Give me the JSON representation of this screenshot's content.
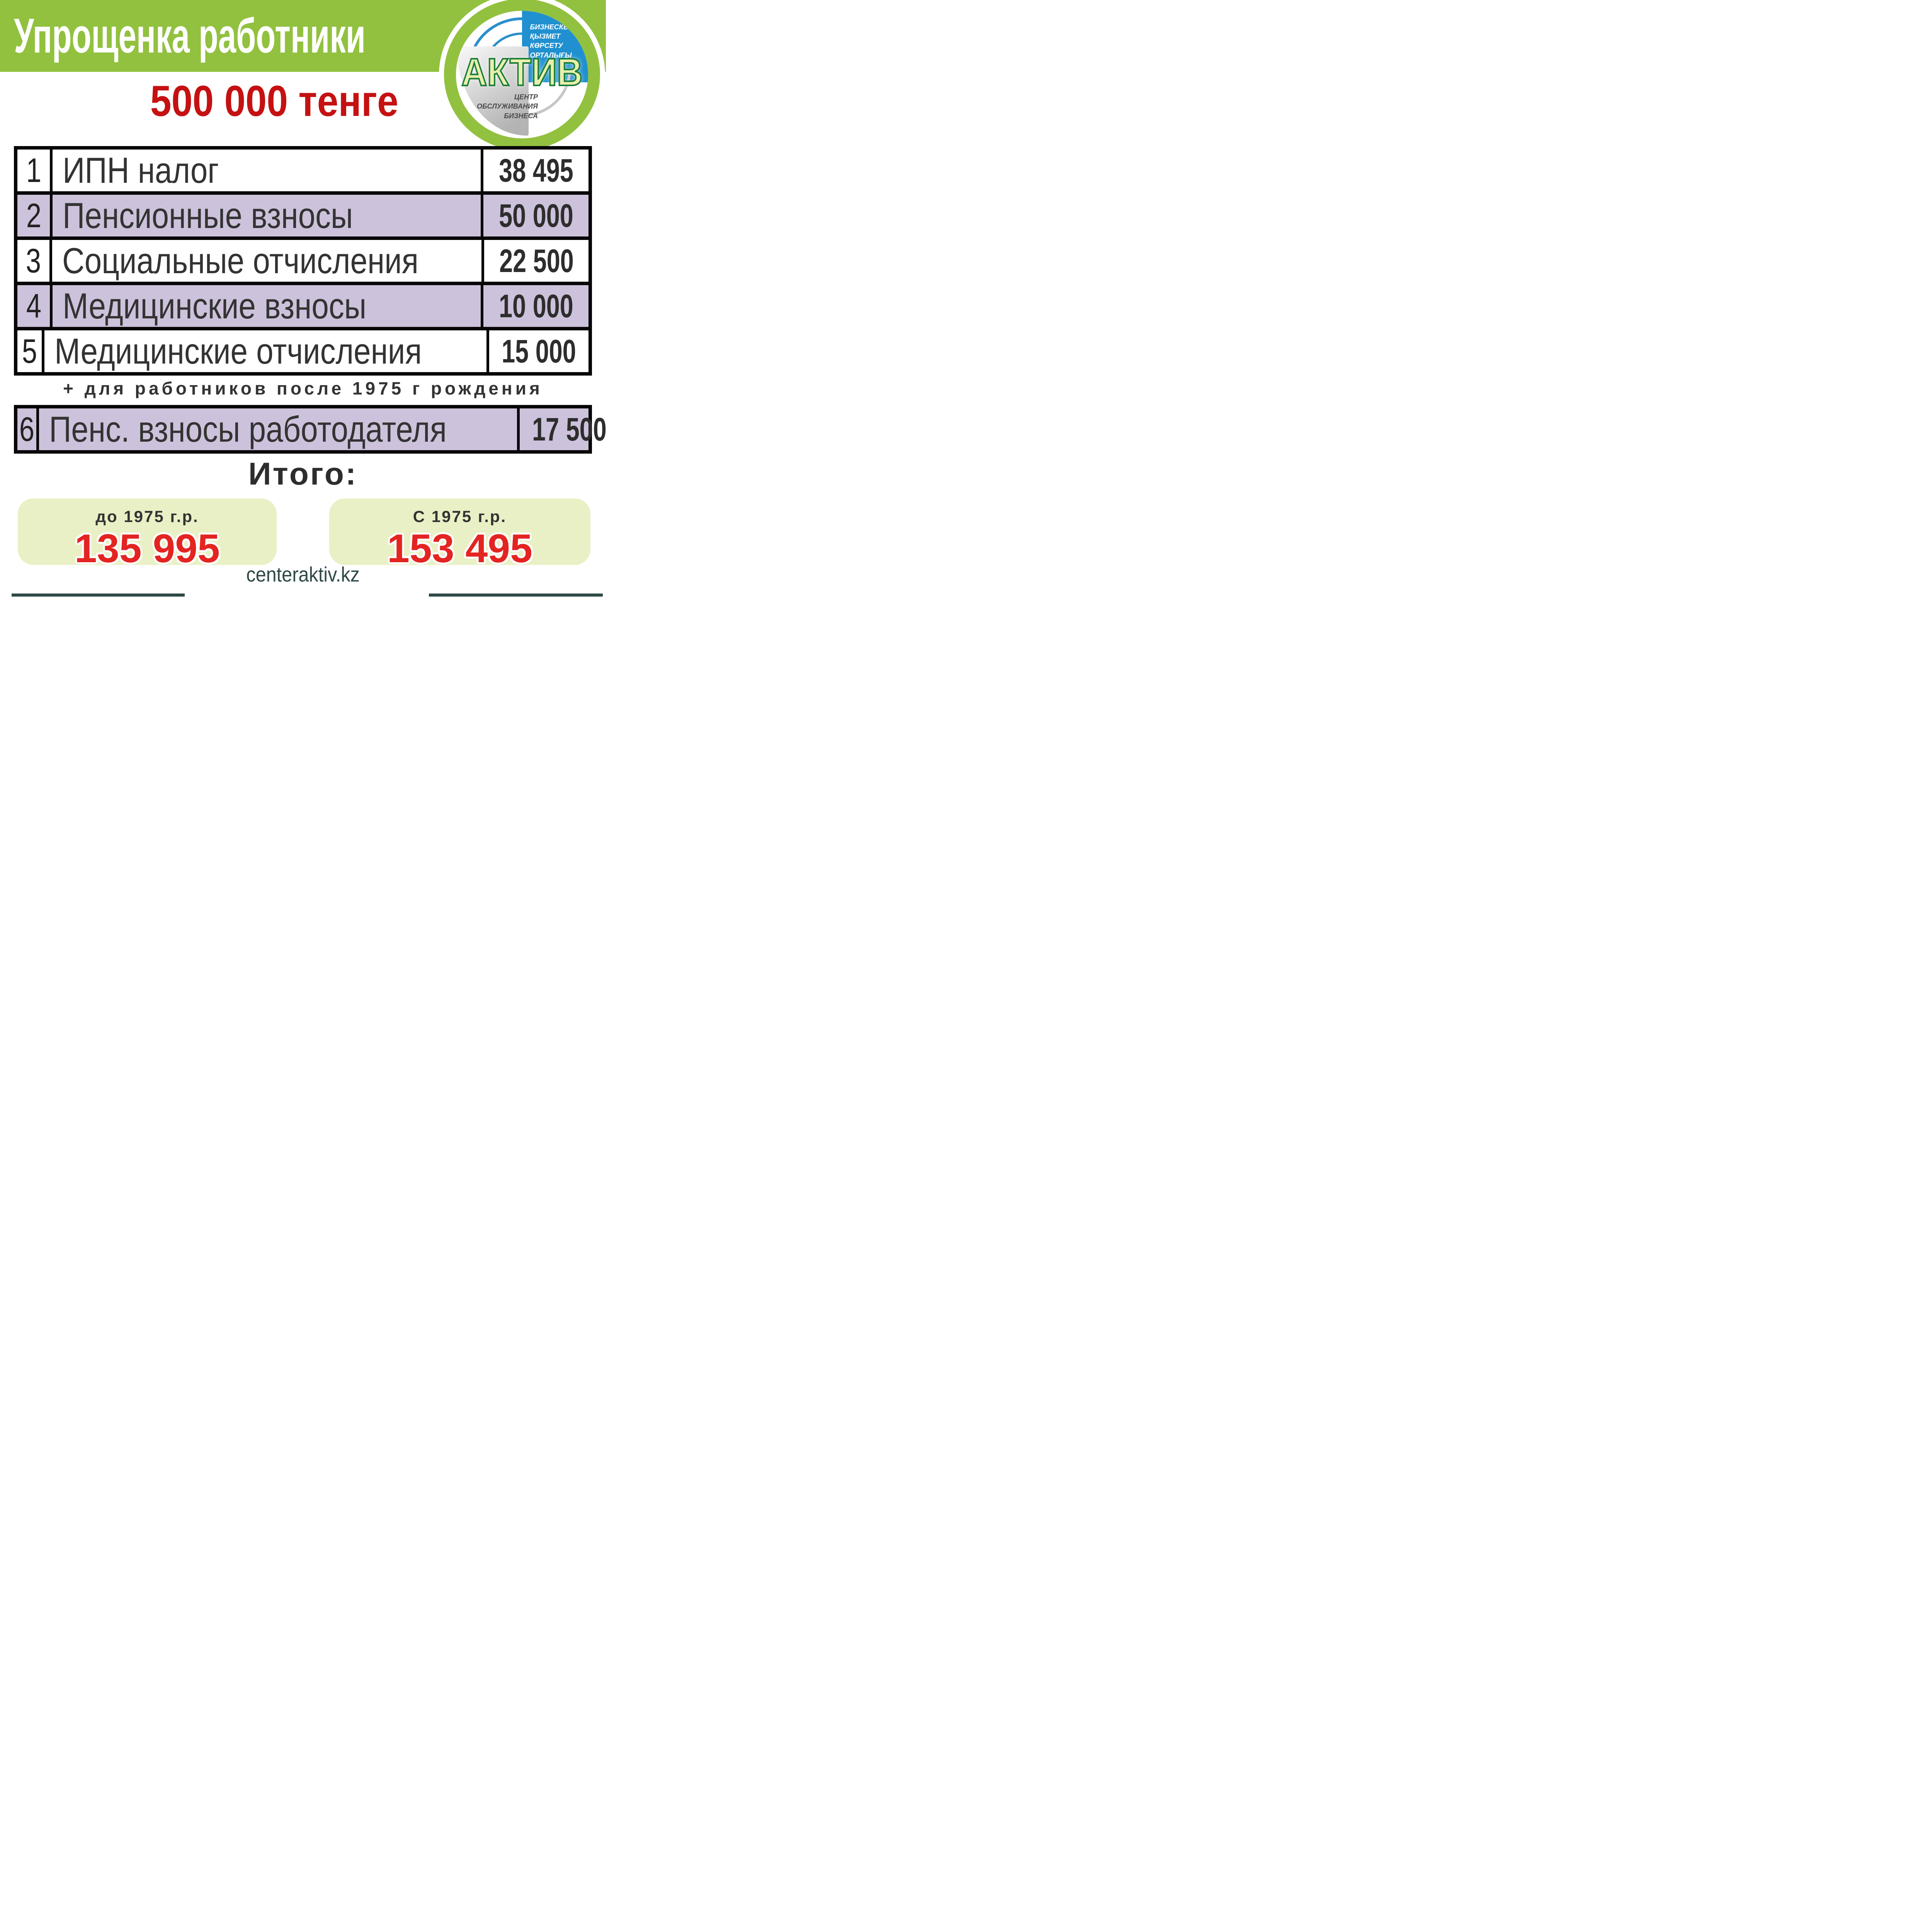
{
  "header": {
    "title": "Упрощенка работники"
  },
  "logo": {
    "brand": "АКТИВ",
    "top_lines": [
      "БИЗНЕСКЕ",
      "ҚЫЗМЕТ",
      "КӨРСЕТУ",
      "ОРТАЛЫҒЫ"
    ],
    "bottom_lines": [
      "ЦЕНТР",
      "ОБСЛУЖИВАНИЯ",
      "БИЗНЕСА"
    ]
  },
  "amount_title": "500 000 тенге",
  "table": {
    "rows": [
      {
        "num": "1",
        "label": "ИПН налог",
        "value": "38 495"
      },
      {
        "num": "2",
        "label": "Пенсионные взносы",
        "value": "50 000"
      },
      {
        "num": "3",
        "label": "Социальные отчисления",
        "value": "22 500"
      },
      {
        "num": "4",
        "label": "Медицинские взносы",
        "value": "10 000"
      },
      {
        "num": "5",
        "label": "Медицинские отчисления",
        "value": "15 000"
      }
    ]
  },
  "note": "+ для работников после 1975 г рождения",
  "extra_row": {
    "num": "6",
    "label": "Пенс. взносы работодателя",
    "value": "17 500"
  },
  "totals": {
    "heading": "Итого:",
    "boxes": [
      {
        "label": "до 1975 г.р.",
        "value": "135 995"
      },
      {
        "label": "С 1975 г.р.",
        "value": "153 495"
      }
    ]
  },
  "footer": {
    "site": "centeraktiv.kz"
  },
  "colors": {
    "header_green": "#92c13f",
    "row_lavender": "#cdc2db",
    "totals_box": "#e9f0c5",
    "title_red": "#c51112",
    "total_red": "#e32421",
    "footer_teal": "#2e4a47",
    "logo_blue": "#2090d0"
  }
}
